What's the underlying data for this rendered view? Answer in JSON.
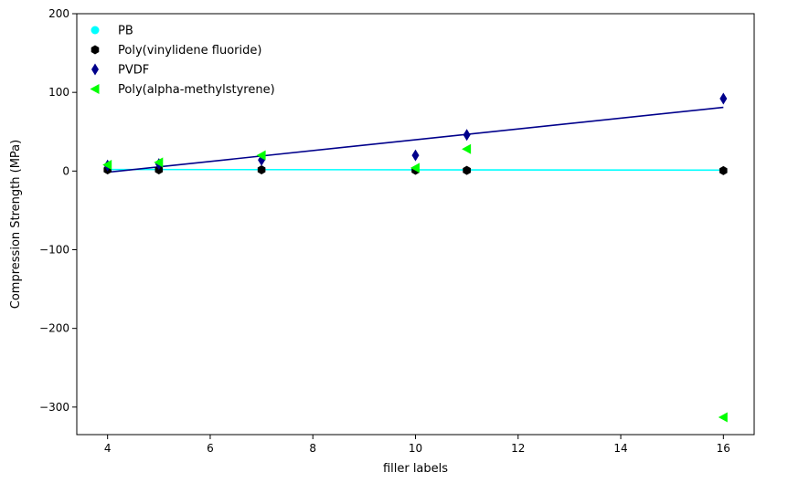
{
  "chart_data": {
    "type": "scatter",
    "title": "",
    "xlabel": "filler labels",
    "ylabel": "Compression Strength (MPa)",
    "xlim": [
      3.4,
      16.6
    ],
    "ylim": [
      -335,
      200
    ],
    "xticks": [
      4,
      6,
      8,
      10,
      12,
      14,
      16
    ],
    "yticks": [
      -300,
      -200,
      -100,
      0,
      100,
      200
    ],
    "grid": false,
    "legend_position": "top-left",
    "series": [
      {
        "name": "PB",
        "marker": "circle",
        "color": "#00FFFF",
        "points": [],
        "fit_line": {
          "x": [
            4,
            16
          ],
          "y": [
            2,
            1.2
          ]
        }
      },
      {
        "name": "Poly(vinylidene fluoride)",
        "marker": "hexagon",
        "color": "#000000",
        "points": [
          [
            4,
            1.5
          ],
          [
            5,
            1.5
          ],
          [
            7,
            1.5
          ],
          [
            10,
            1
          ],
          [
            11,
            0.8
          ],
          [
            16,
            0.5
          ]
        ]
      },
      {
        "name": "PVDF",
        "marker": "thin_diamond",
        "color": "#00008B",
        "points": [
          [
            4,
            7
          ],
          [
            5,
            9
          ],
          [
            7,
            14
          ],
          [
            10,
            20
          ],
          [
            11,
            46
          ],
          [
            16,
            92
          ]
        ],
        "fit_line": {
          "x": [
            4,
            16
          ],
          "y": [
            -1.5,
            81
          ]
        }
      },
      {
        "name": "Poly(alpha-methylstyrene)",
        "marker": "triangle_left",
        "color": "#00FF00",
        "points": [
          [
            4,
            8
          ],
          [
            5,
            11
          ],
          [
            7,
            20
          ],
          [
            10,
            4
          ],
          [
            11,
            28
          ],
          [
            16,
            -313
          ]
        ]
      }
    ]
  }
}
